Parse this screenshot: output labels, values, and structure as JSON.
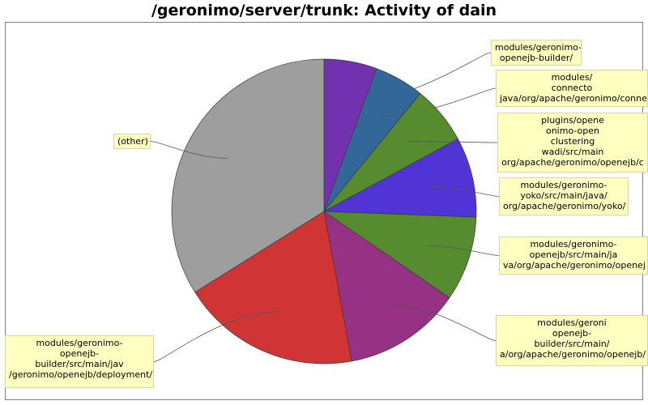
{
  "chart_data": {
    "type": "pie",
    "title": "/geronimo/server/trunk: Activity of dain",
    "slices": [
      {
        "label": "modules/geronimo-\nopenejb-builder/",
        "value": 5.6,
        "color": "#7232b0"
      },
      {
        "label": "modules/\nconnecto\njava/org/apache/geronimo/conne",
        "value": 5.3,
        "color": "#336699"
      },
      {
        "label": "plugins/opene\nonimo-open\nclustering\nwadi/src/main\norg/apache/geronimo/openejb/c",
        "value": 6.2,
        "color": "#568c2f"
      },
      {
        "label": "modules/geronimo-\nyoko/src/main/java/\norg/apache/geronimo/yoko/",
        "value": 8.5,
        "color": "#5034d6"
      },
      {
        "label": "modules/geronimo-\nopenejb/src/main/ja\nva/org/apache/geronimo/openej",
        "value": 9.0,
        "color": "#568c2f"
      },
      {
        "label": "modules/geroni\nopenejb-\nbuilder/src/main/\na/org/apache/geronimo/openejb/",
        "value": 12.5,
        "color": "#963183"
      },
      {
        "label": "modules/geronimo-\nopenejb-\nbuilder/src/main/jav\n/geronimo/openejb/deployment/",
        "value": 19.0,
        "color": "#d13434"
      },
      {
        "label": "(other)",
        "value": 33.9,
        "color": "#9e9e9e"
      }
    ]
  }
}
